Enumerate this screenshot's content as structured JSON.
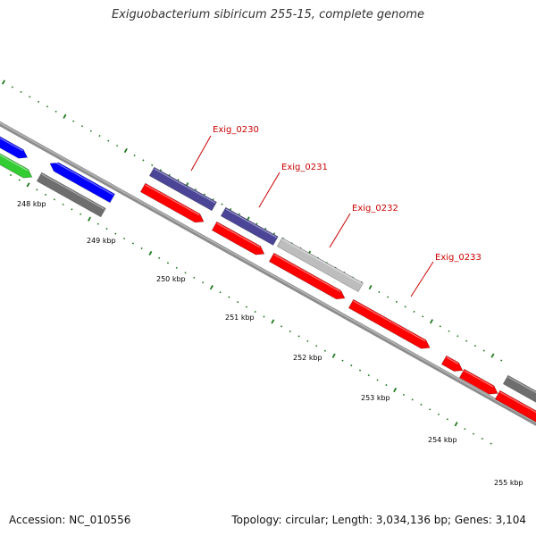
{
  "title": "Exiguobacterium sibiricum 255-15, complete genome",
  "footer": {
    "accession": "Accession: NC_010556",
    "summary": "Topology: circular; Length: 3,034,136 bp; Genes: 3,104"
  },
  "colors": {
    "backbone": "#8c8c8c",
    "tick": "#1f7a1f",
    "label_line": "#cc0000",
    "label_text": "#cc0000",
    "cds_red": "#ff0000",
    "blue": "#0000ff",
    "green": "#33cc33",
    "slate": "#4a4596",
    "dark_gray": "#6e6e6e",
    "light_gray": "#bdbdbd"
  },
  "scale_labels": [
    "248 kbp",
    "249 kbp",
    "250 kbp",
    "251 kbp",
    "252 kbp",
    "253 kbp",
    "254 kbp",
    "255 kbp"
  ],
  "gene_labels": [
    "Exig_0230",
    "Exig_0231",
    "Exig_0232",
    "Exig_0233"
  ]
}
